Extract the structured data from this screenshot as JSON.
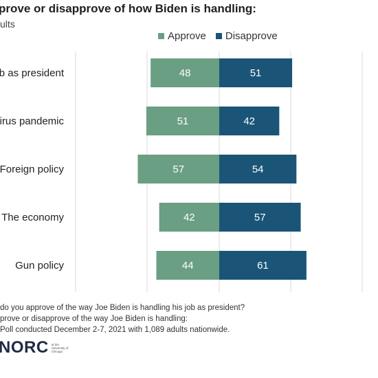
{
  "header": {
    "title": "prove or disapprove of how Biden is handling:",
    "subtitle": "ults"
  },
  "legend": [
    {
      "label": "Approve",
      "color": "#6a9f84"
    },
    {
      "label": "Disapprove",
      "color": "#1a5577"
    }
  ],
  "chart_data": {
    "type": "bar",
    "orientation": "horizontal-diverging",
    "categories": [
      "b as president",
      "irus pandemic",
      "Foreign policy",
      "The economy",
      "Gun policy"
    ],
    "series": [
      {
        "name": "Approve",
        "values": [
          48,
          51,
          57,
          42,
          44
        ],
        "color": "#6a9f84"
      },
      {
        "name": "Disapprove",
        "values": [
          51,
          42,
          54,
          57,
          61
        ],
        "color": "#1a5577"
      }
    ],
    "grid": true
  },
  "footnotes": [
    "do you approve of the way Joe Biden is handling his job as president?",
    "prove or disapprove of the way Joe Biden is handling:",
    "Poll conducted December 2-7, 2021 with 1,089 adults nationwide."
  ],
  "logo": {
    "text": "NORC",
    "sub": "at the University of Chicago"
  }
}
